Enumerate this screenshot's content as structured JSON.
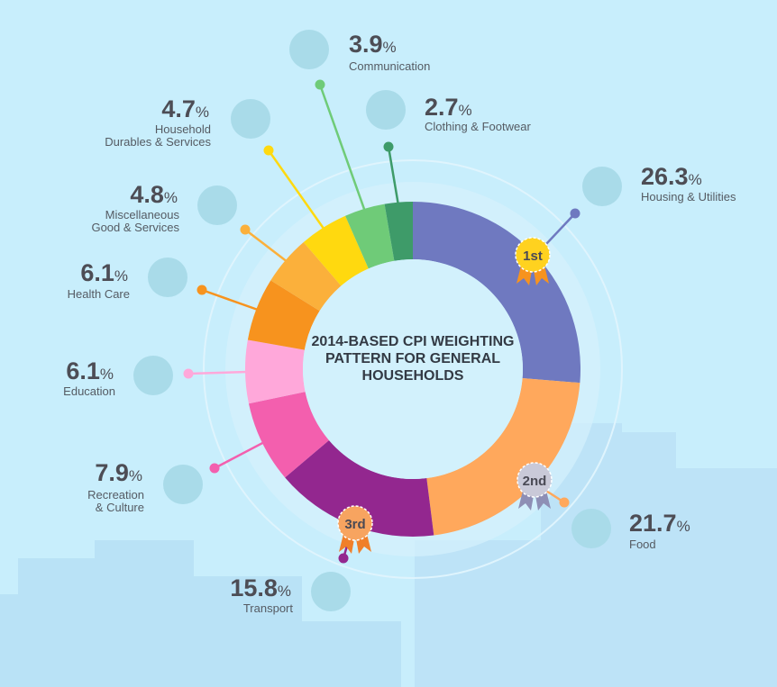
{
  "chart_data": {
    "type": "pie",
    "variant": "donut",
    "title": "2014-BASED CPI WEIGHTING PATTERN FOR GENERAL HOUSEHOLDS",
    "unit": "%",
    "slices": [
      {
        "label": "Housing & Utilities",
        "value": 26.3,
        "value_text": "26.3",
        "color": "#6f79c0",
        "icon": "building-icon",
        "rank": "1st"
      },
      {
        "label": "Food",
        "value": 21.7,
        "value_text": "21.7",
        "color": "#ffa85c",
        "icon": "food-basket-icon",
        "rank": "2nd"
      },
      {
        "label": "Transport",
        "value": 15.8,
        "value_text": "15.8",
        "color": "#93278f",
        "icon": "bus-icon",
        "rank": "3rd"
      },
      {
        "label": "Recreation\n& Culture",
        "value": 7.9,
        "value_text": "7.9",
        "color": "#f35fae",
        "icon": "ticket-icon"
      },
      {
        "label": "Education",
        "value": 6.1,
        "value_text": "6.1",
        "color": "#ffa8da",
        "icon": "education-icon"
      },
      {
        "label": "Health Care",
        "value": 6.1,
        "value_text": "6.1",
        "color": "#f7931e",
        "icon": "health-icon"
      },
      {
        "label": "Miscellaneous\nGood & Services",
        "value": 4.8,
        "value_text": "4.8",
        "color": "#fbb03b",
        "icon": "watch-icon"
      },
      {
        "label": "Household\nDurables & Services",
        "value": 4.7,
        "value_text": "4.7",
        "color": "#ffd90f",
        "icon": "washing-machine-icon"
      },
      {
        "label": "Communication",
        "value": 3.9,
        "value_text": "3.9",
        "color": "#6fcb78",
        "icon": "chat-icon"
      },
      {
        "label": "Clothing & Footwear",
        "value": 2.7,
        "value_text": "2.7",
        "color": "#3e9b69",
        "icon": "shirt-icon"
      }
    ],
    "percent_sign": "%",
    "legend": "none"
  }
}
